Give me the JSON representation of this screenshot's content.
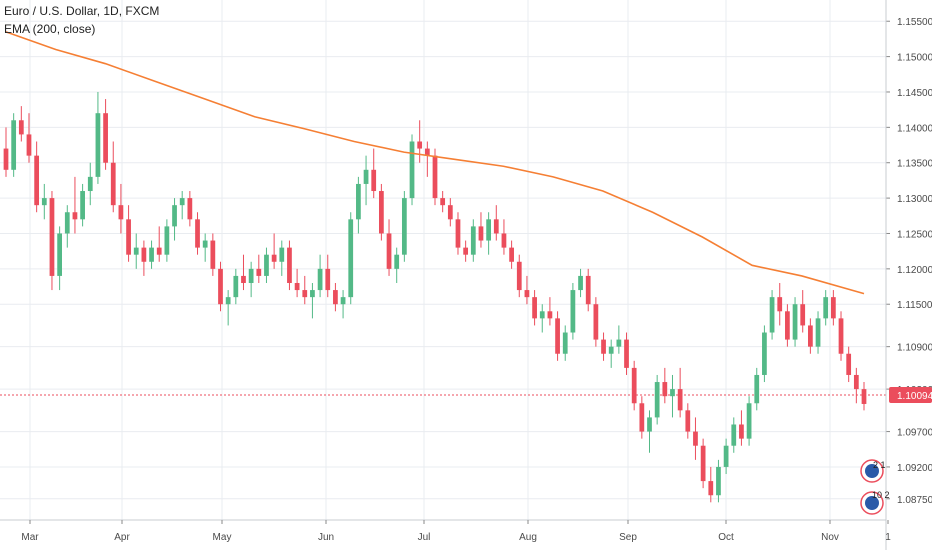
{
  "header": {
    "symbol_line": "Euro / U.S. Dollar, 1D, FXCM",
    "indicator_line": "EMA (200, close)"
  },
  "colors": {
    "up": "#53b987",
    "down": "#eb4d5c",
    "ema": "#f57f34",
    "grid": "#e9ecf0",
    "axis_text": "#4a4a4a",
    "price_tag": "#eb4d5c"
  },
  "chart_data": {
    "type": "candlestick",
    "y_axis": {
      "ticks": [
        "1.15500",
        "1.15000",
        "1.14500",
        "1.14000",
        "1.13500",
        "1.13000",
        "1.12500",
        "1.12000",
        "1.11500",
        "1.10900",
        "1.10300",
        "1.09700",
        "1.09200",
        "1.08750"
      ],
      "range": [
        1.0845,
        1.158
      ]
    },
    "x_axis": {
      "labels": [
        "Mar",
        "Apr",
        "May",
        "Jun",
        "Jul",
        "Aug",
        "Sep",
        "Oct",
        "Nov",
        "1"
      ]
    },
    "last_price": "1.10094",
    "indicators": [
      {
        "type": "icon",
        "name": "dividends-icon",
        "text": "2 1"
      },
      {
        "type": "icon",
        "name": "earnings-icon",
        "text": "10 2"
      }
    ],
    "ema_series": [
      {
        "x": 0,
        "y": 1.1535
      },
      {
        "x": 20,
        "y": 1.151
      },
      {
        "x": 40,
        "y": 1.149
      },
      {
        "x": 60,
        "y": 1.1465
      },
      {
        "x": 80,
        "y": 1.144
      },
      {
        "x": 100,
        "y": 1.1415
      },
      {
        "x": 120,
        "y": 1.1398
      },
      {
        "x": 140,
        "y": 1.138
      },
      {
        "x": 160,
        "y": 1.1365
      },
      {
        "x": 180,
        "y": 1.1355
      },
      {
        "x": 200,
        "y": 1.1345
      },
      {
        "x": 220,
        "y": 1.133
      },
      {
        "x": 240,
        "y": 1.131
      },
      {
        "x": 260,
        "y": 1.128
      },
      {
        "x": 280,
        "y": 1.1245
      },
      {
        "x": 300,
        "y": 1.1205
      },
      {
        "x": 320,
        "y": 1.119
      },
      {
        "x": 345,
        "y": 1.1165
      }
    ],
    "candles": [
      [
        1.137,
        1.14,
        1.133,
        1.134
      ],
      [
        1.134,
        1.142,
        1.133,
        1.141
      ],
      [
        1.141,
        1.143,
        1.138,
        1.139
      ],
      [
        1.139,
        1.142,
        1.135,
        1.136
      ],
      [
        1.136,
        1.138,
        1.128,
        1.129
      ],
      [
        1.129,
        1.132,
        1.127,
        1.13
      ],
      [
        1.13,
        1.131,
        1.117,
        1.119
      ],
      [
        1.119,
        1.126,
        1.117,
        1.125
      ],
      [
        1.125,
        1.129,
        1.123,
        1.128
      ],
      [
        1.128,
        1.133,
        1.125,
        1.127
      ],
      [
        1.127,
        1.132,
        1.126,
        1.131
      ],
      [
        1.131,
        1.135,
        1.129,
        1.133
      ],
      [
        1.133,
        1.145,
        1.132,
        1.142
      ],
      [
        1.142,
        1.144,
        1.134,
        1.135
      ],
      [
        1.135,
        1.138,
        1.128,
        1.129
      ],
      [
        1.129,
        1.132,
        1.125,
        1.127
      ],
      [
        1.127,
        1.129,
        1.121,
        1.122
      ],
      [
        1.122,
        1.125,
        1.12,
        1.123
      ],
      [
        1.123,
        1.124,
        1.119,
        1.121
      ],
      [
        1.121,
        1.124,
        1.12,
        1.123
      ],
      [
        1.123,
        1.126,
        1.121,
        1.122
      ],
      [
        1.122,
        1.127,
        1.121,
        1.126
      ],
      [
        1.126,
        1.13,
        1.124,
        1.129
      ],
      [
        1.129,
        1.131,
        1.127,
        1.13
      ],
      [
        1.13,
        1.131,
        1.126,
        1.127
      ],
      [
        1.127,
        1.128,
        1.122,
        1.123
      ],
      [
        1.123,
        1.125,
        1.121,
        1.124
      ],
      [
        1.124,
        1.125,
        1.119,
        1.12
      ],
      [
        1.12,
        1.121,
        1.114,
        1.115
      ],
      [
        1.115,
        1.117,
        1.112,
        1.116
      ],
      [
        1.116,
        1.12,
        1.115,
        1.119
      ],
      [
        1.119,
        1.122,
        1.117,
        1.118
      ],
      [
        1.118,
        1.121,
        1.116,
        1.12
      ],
      [
        1.12,
        1.122,
        1.118,
        1.119
      ],
      [
        1.119,
        1.123,
        1.118,
        1.122
      ],
      [
        1.122,
        1.125,
        1.12,
        1.121
      ],
      [
        1.121,
        1.124,
        1.119,
        1.123
      ],
      [
        1.123,
        1.124,
        1.117,
        1.118
      ],
      [
        1.118,
        1.12,
        1.116,
        1.117
      ],
      [
        1.117,
        1.119,
        1.115,
        1.116
      ],
      [
        1.116,
        1.118,
        1.113,
        1.117
      ],
      [
        1.117,
        1.122,
        1.116,
        1.12
      ],
      [
        1.12,
        1.122,
        1.116,
        1.117
      ],
      [
        1.117,
        1.118,
        1.114,
        1.115
      ],
      [
        1.115,
        1.117,
        1.113,
        1.116
      ],
      [
        1.116,
        1.128,
        1.115,
        1.127
      ],
      [
        1.127,
        1.133,
        1.125,
        1.132
      ],
      [
        1.132,
        1.136,
        1.129,
        1.134
      ],
      [
        1.134,
        1.137,
        1.13,
        1.131
      ],
      [
        1.131,
        1.132,
        1.124,
        1.125
      ],
      [
        1.125,
        1.127,
        1.119,
        1.12
      ],
      [
        1.12,
        1.123,
        1.118,
        1.122
      ],
      [
        1.122,
        1.131,
        1.121,
        1.13
      ],
      [
        1.13,
        1.139,
        1.129,
        1.138
      ],
      [
        1.138,
        1.141,
        1.135,
        1.137
      ],
      [
        1.137,
        1.138,
        1.133,
        1.136
      ],
      [
        1.136,
        1.137,
        1.129,
        1.13
      ],
      [
        1.13,
        1.131,
        1.128,
        1.129
      ],
      [
        1.129,
        1.13,
        1.126,
        1.127
      ],
      [
        1.127,
        1.128,
        1.122,
        1.123
      ],
      [
        1.123,
        1.124,
        1.121,
        1.122
      ],
      [
        1.122,
        1.127,
        1.121,
        1.126
      ],
      [
        1.126,
        1.128,
        1.123,
        1.124
      ],
      [
        1.124,
        1.128,
        1.122,
        1.127
      ],
      [
        1.127,
        1.129,
        1.124,
        1.125
      ],
      [
        1.125,
        1.127,
        1.122,
        1.123
      ],
      [
        1.123,
        1.124,
        1.12,
        1.121
      ],
      [
        1.121,
        1.122,
        1.116,
        1.117
      ],
      [
        1.117,
        1.119,
        1.115,
        1.116
      ],
      [
        1.116,
        1.117,
        1.112,
        1.113
      ],
      [
        1.113,
        1.115,
        1.111,
        1.114
      ],
      [
        1.114,
        1.116,
        1.112,
        1.113
      ],
      [
        1.113,
        1.114,
        1.107,
        1.108
      ],
      [
        1.108,
        1.112,
        1.107,
        1.111
      ],
      [
        1.111,
        1.118,
        1.11,
        1.117
      ],
      [
        1.117,
        1.12,
        1.116,
        1.119
      ],
      [
        1.119,
        1.12,
        1.114,
        1.115
      ],
      [
        1.115,
        1.116,
        1.109,
        1.11
      ],
      [
        1.11,
        1.111,
        1.107,
        1.108
      ],
      [
        1.108,
        1.11,
        1.106,
        1.109
      ],
      [
        1.109,
        1.112,
        1.108,
        1.11
      ],
      [
        1.11,
        1.111,
        1.105,
        1.106
      ],
      [
        1.106,
        1.107,
        1.1,
        1.101
      ],
      [
        1.101,
        1.102,
        1.096,
        1.097
      ],
      [
        1.097,
        1.1,
        1.094,
        1.099
      ],
      [
        1.099,
        1.105,
        1.098,
        1.104
      ],
      [
        1.104,
        1.106,
        1.101,
        1.102
      ],
      [
        1.102,
        1.105,
        1.099,
        1.103
      ],
      [
        1.103,
        1.106,
        1.099,
        1.1
      ],
      [
        1.1,
        1.101,
        1.096,
        1.097
      ],
      [
        1.097,
        1.099,
        1.093,
        1.095
      ],
      [
        1.095,
        1.096,
        1.089,
        1.09
      ],
      [
        1.09,
        1.092,
        1.087,
        1.088
      ],
      [
        1.088,
        1.093,
        1.087,
        1.092
      ],
      [
        1.092,
        1.096,
        1.091,
        1.095
      ],
      [
        1.095,
        1.099,
        1.094,
        1.098
      ],
      [
        1.098,
        1.1,
        1.095,
        1.096
      ],
      [
        1.096,
        1.102,
        1.095,
        1.101
      ],
      [
        1.101,
        1.106,
        1.1,
        1.105
      ],
      [
        1.105,
        1.112,
        1.104,
        1.111
      ],
      [
        1.111,
        1.117,
        1.11,
        1.116
      ],
      [
        1.116,
        1.118,
        1.112,
        1.114
      ],
      [
        1.114,
        1.115,
        1.109,
        1.11
      ],
      [
        1.11,
        1.116,
        1.109,
        1.115
      ],
      [
        1.115,
        1.117,
        1.111,
        1.112
      ],
      [
        1.112,
        1.113,
        1.108,
        1.109
      ],
      [
        1.109,
        1.114,
        1.108,
        1.113
      ],
      [
        1.113,
        1.117,
        1.112,
        1.116
      ],
      [
        1.116,
        1.117,
        1.112,
        1.113
      ],
      [
        1.113,
        1.114,
        1.107,
        1.108
      ],
      [
        1.108,
        1.109,
        1.104,
        1.105
      ],
      [
        1.105,
        1.106,
        1.101,
        1.103
      ],
      [
        1.103,
        1.104,
        1.1,
        1.1009
      ]
    ]
  }
}
